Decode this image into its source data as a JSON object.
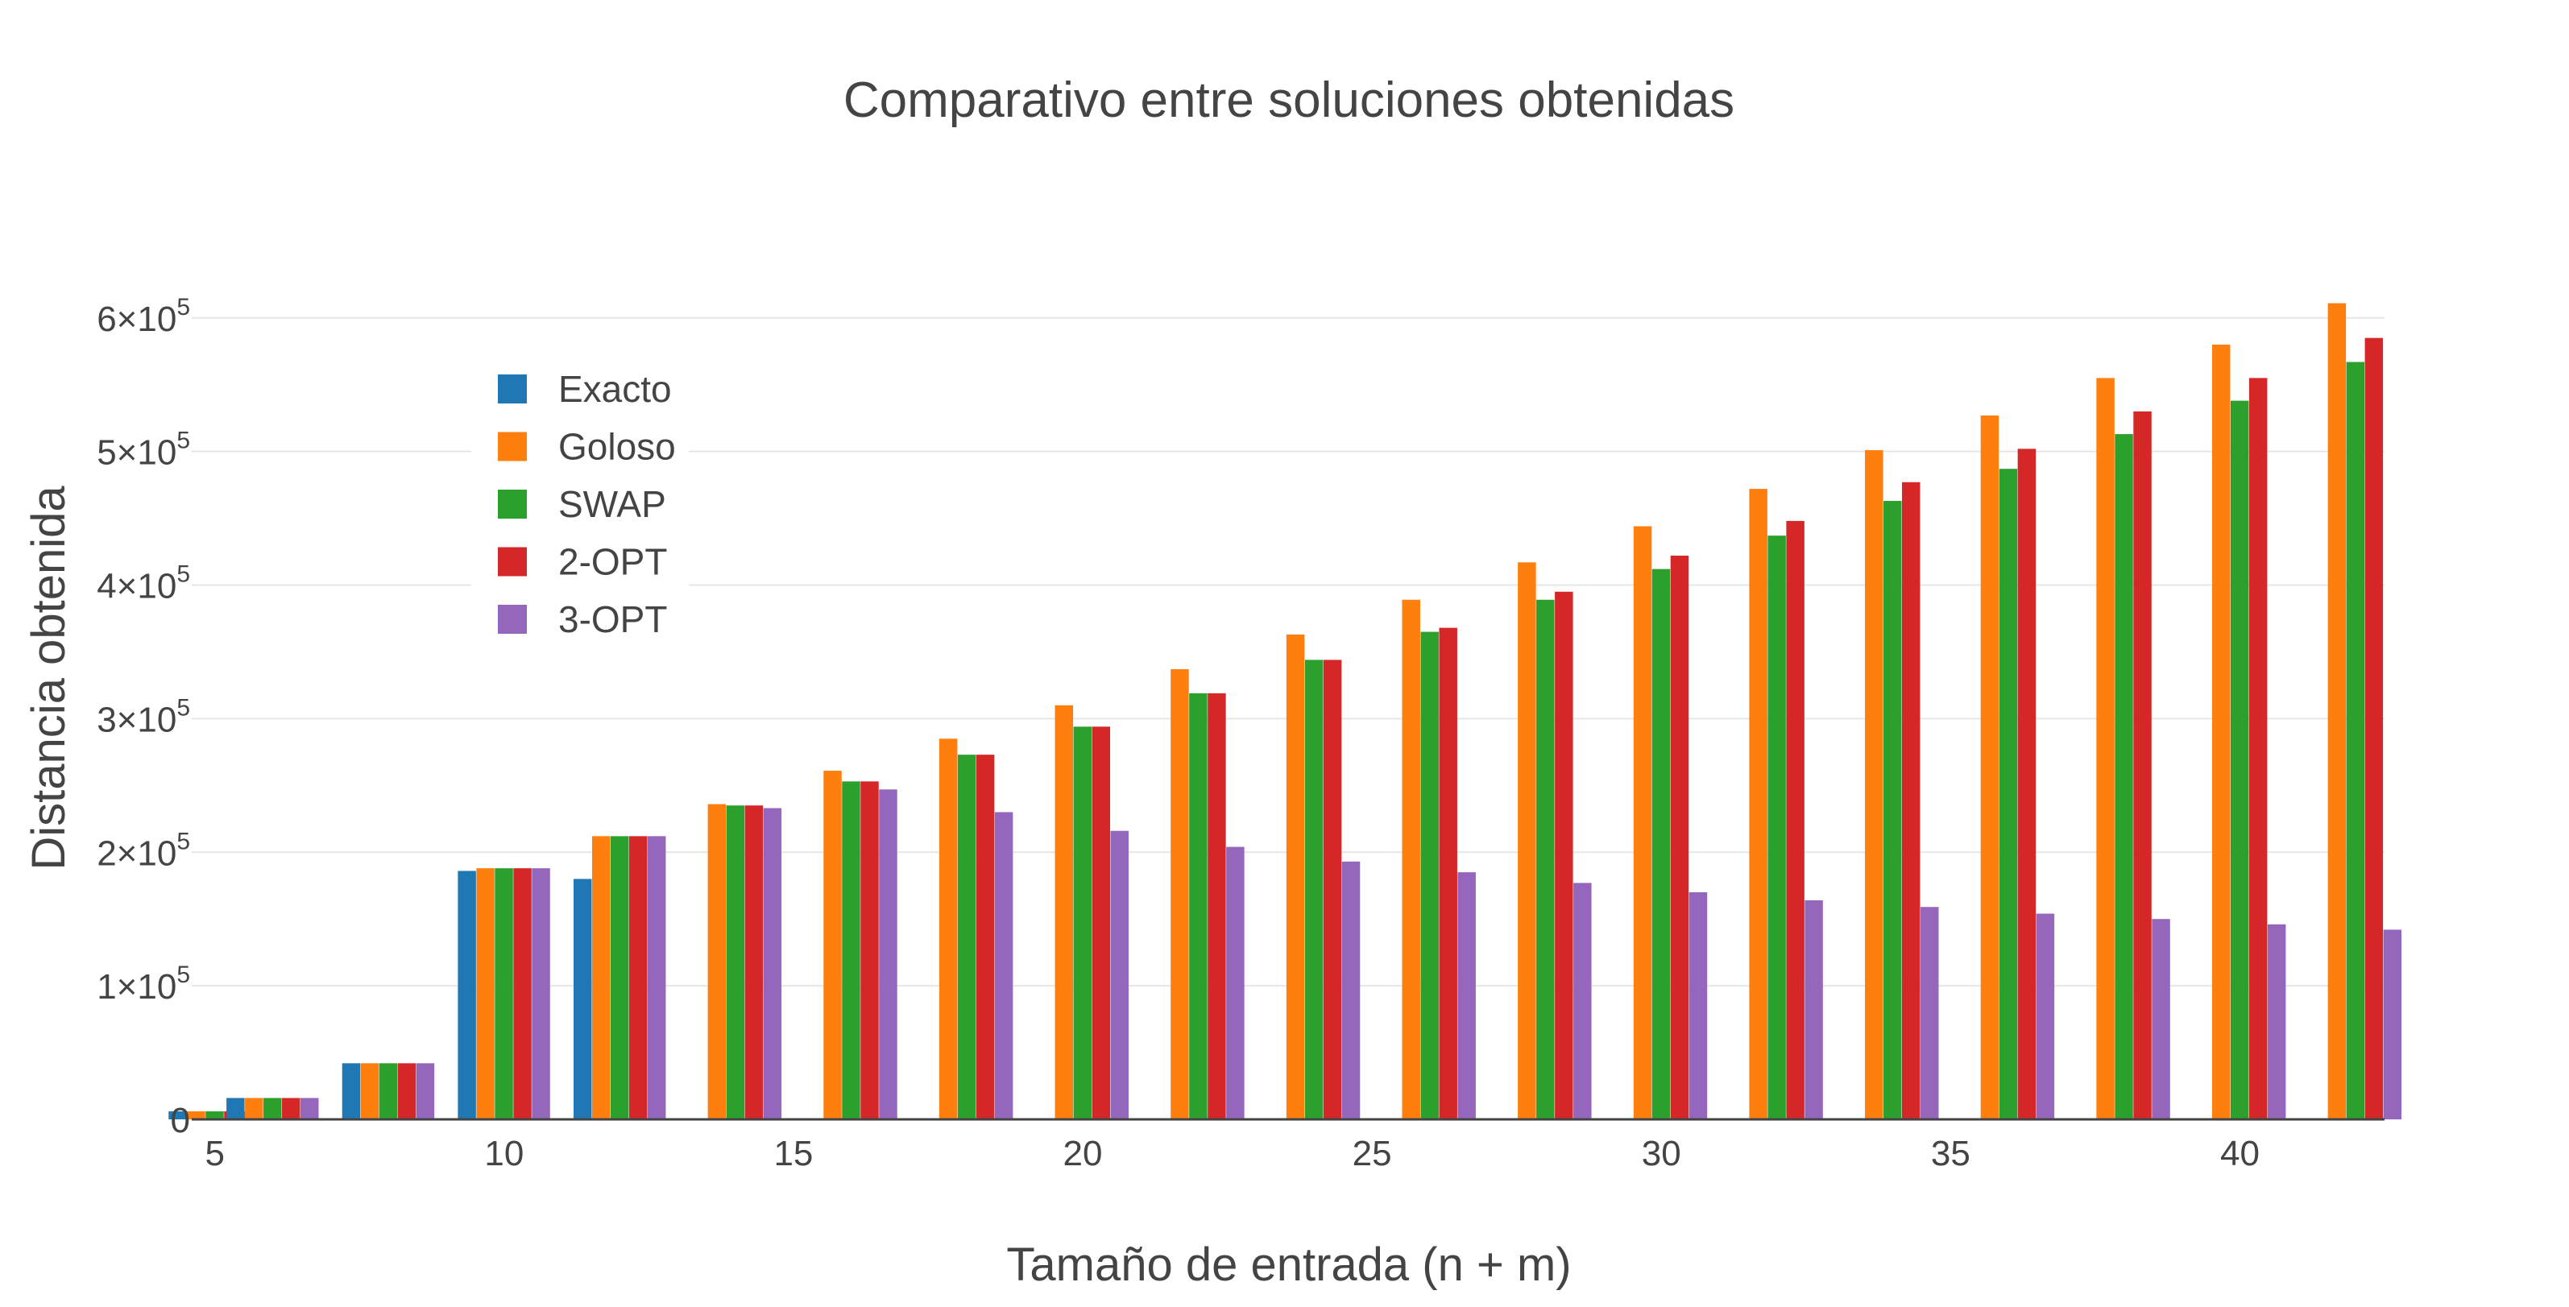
{
  "chart_data": {
    "type": "bar",
    "title": "Comparativo entre soluciones obtenidas",
    "xlabel": "Tamaño de entrada (n + m)",
    "ylabel": "Distancia obtenida",
    "xlim": [
      4.6,
      42.5
    ],
    "ylim": [
      0,
      630000
    ],
    "grid": true,
    "legend_position": "top-left",
    "x_ticks": [
      {
        "value": 5,
        "label": "5"
      },
      {
        "value": 10,
        "label": "10"
      },
      {
        "value": 15,
        "label": "15"
      },
      {
        "value": 20,
        "label": "20"
      },
      {
        "value": 25,
        "label": "25"
      },
      {
        "value": 30,
        "label": "30"
      },
      {
        "value": 35,
        "label": "35"
      },
      {
        "value": 40,
        "label": "40"
      }
    ],
    "y_ticks": [
      {
        "value": 0,
        "base": "0",
        "exp": ""
      },
      {
        "value": 100000,
        "base": "1×10",
        "exp": "5"
      },
      {
        "value": 200000,
        "base": "2×10",
        "exp": "5"
      },
      {
        "value": 300000,
        "base": "3×10",
        "exp": "5"
      },
      {
        "value": 400000,
        "base": "4×10",
        "exp": "5"
      },
      {
        "value": 500000,
        "base": "5×10",
        "exp": "5"
      },
      {
        "value": 600000,
        "base": "6×10",
        "exp": "5"
      }
    ],
    "x": [
      5,
      6,
      8,
      10,
      12,
      14,
      16,
      18,
      20,
      22,
      24,
      26,
      28,
      30,
      32,
      34,
      36,
      38,
      40,
      42
    ],
    "series": [
      {
        "name": "Exacto",
        "color": "#1f77b4",
        "values": [
          6000,
          16000,
          42000,
          186000,
          180000,
          null,
          null,
          null,
          null,
          null,
          null,
          null,
          null,
          null,
          null,
          null,
          null,
          null,
          null,
          null
        ]
      },
      {
        "name": "Goloso",
        "color": "#ff7f0e",
        "values": [
          6000,
          16000,
          42000,
          188000,
          212000,
          236000,
          261000,
          285000,
          310000,
          337000,
          363000,
          389000,
          417000,
          444000,
          472000,
          501000,
          527000,
          555000,
          580000,
          611000
        ]
      },
      {
        "name": "SWAP",
        "color": "#2ca02c",
        "values": [
          6000,
          16000,
          42000,
          188000,
          212000,
          235000,
          253000,
          273000,
          294000,
          319000,
          344000,
          365000,
          389000,
          412000,
          437000,
          463000,
          487000,
          513000,
          538000,
          567000
        ]
      },
      {
        "name": "2-OPT",
        "color": "#d62728",
        "values": [
          6000,
          16000,
          42000,
          188000,
          212000,
          235000,
          253000,
          273000,
          294000,
          319000,
          344000,
          368000,
          395000,
          422000,
          448000,
          477000,
          502000,
          530000,
          555000,
          585000
        ]
      },
      {
        "name": "3-OPT",
        "color": "#9467bd",
        "values": [
          6000,
          16000,
          42000,
          188000,
          212000,
          233000,
          247000,
          230000,
          216000,
          204000,
          193000,
          185000,
          177000,
          170000,
          164000,
          159000,
          154000,
          150000,
          146000,
          142000
        ]
      }
    ]
  }
}
